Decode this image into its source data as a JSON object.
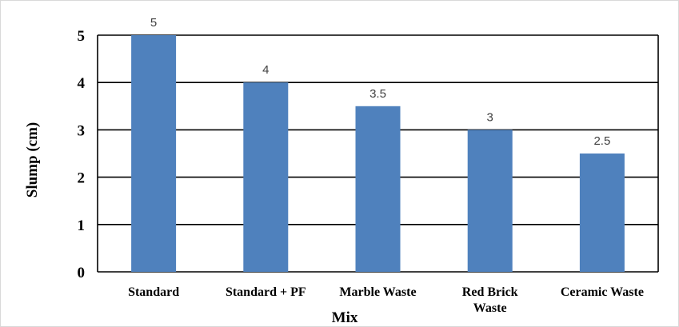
{
  "chart_data": {
    "type": "bar",
    "categories": [
      "Standard",
      "Standard + PF",
      "Marble Waste",
      "Red Brick Waste",
      "Ceramic Waste"
    ],
    "category_lines": [
      [
        "Standard"
      ],
      [
        "Standard + PF"
      ],
      [
        "Marble Waste"
      ],
      [
        "Red Brick",
        "Waste"
      ],
      [
        "Ceramic Waste"
      ]
    ],
    "values": [
      5,
      4,
      3.5,
      3,
      2.5
    ],
    "data_labels": [
      "5",
      "4",
      "3.5",
      "3",
      "2.5"
    ],
    "title": "",
    "xlabel": "Mix",
    "ylabel": "Slump (cm)",
    "ylim": [
      0,
      5
    ],
    "yticks": [
      0,
      1,
      2,
      3,
      4,
      5
    ],
    "grid": true,
    "bar_color": "#4f81bd",
    "grid_color": "#000000"
  }
}
